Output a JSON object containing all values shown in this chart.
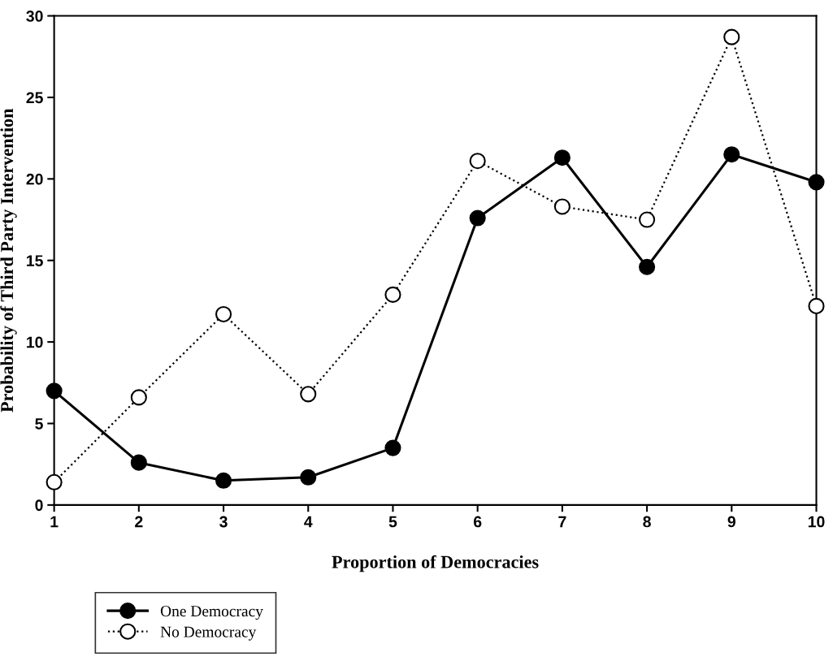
{
  "chart_data": {
    "type": "line",
    "xlabel": "Proportion of Democracies",
    "ylabel": "Probability of Third Party Intervention",
    "x": [
      1,
      2,
      3,
      4,
      5,
      6,
      7,
      8,
      9,
      10
    ],
    "xlim": [
      1,
      10
    ],
    "xticks": [
      1,
      2,
      3,
      4,
      5,
      6,
      7,
      8,
      9,
      10
    ],
    "ylim": [
      0,
      30
    ],
    "yticks": [
      0,
      5,
      10,
      15,
      20,
      25,
      30
    ],
    "grid": false,
    "legend": "bottom left",
    "series": [
      {
        "name": "One Democracy",
        "color": "#000000",
        "marker": "circle",
        "line_style": "solid",
        "values": [
          7.0,
          2.6,
          1.5,
          1.7,
          3.5,
          17.6,
          21.3,
          14.6,
          21.5,
          19.8
        ]
      },
      {
        "name": "No Democracy",
        "color": "#000000",
        "marker": "circle",
        "line_style": "dotted",
        "values": [
          1.4,
          6.6,
          11.7,
          6.8,
          12.9,
          21.1,
          18.3,
          17.5,
          28.7,
          12.2
        ]
      }
    ]
  }
}
